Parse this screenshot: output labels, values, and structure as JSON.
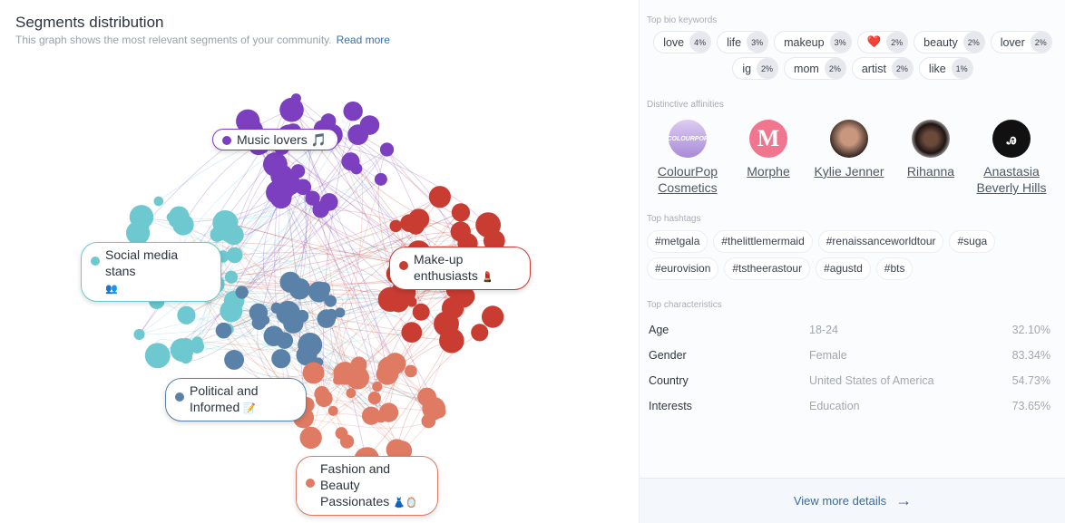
{
  "header": {
    "title": "Segments distribution",
    "subtitle": "This graph shows the most relevant segments of your community.",
    "read_more": "Read more"
  },
  "segments": [
    {
      "name": "Music lovers",
      "emoji": "🎵",
      "color": "#7b3fbf"
    },
    {
      "name": "Social media stans",
      "emoji": "👥",
      "color": "#6ec8d0"
    },
    {
      "name": "Make-up enthusiasts",
      "emoji": "💄",
      "color": "#c93c32"
    },
    {
      "name": "Political and Informed",
      "emoji": "📝",
      "color": "#5a82a8"
    },
    {
      "name": "Fashion and Beauty Passionates",
      "emoji": "👗🪞",
      "color": "#df7a63"
    }
  ],
  "keywords": {
    "title": "Top bio keywords",
    "items": [
      {
        "word": "love",
        "pct": "4%"
      },
      {
        "word": "life",
        "pct": "3%"
      },
      {
        "word": "makeup",
        "pct": "3%"
      },
      {
        "word": "❤️",
        "pct": "2%"
      },
      {
        "word": "beauty",
        "pct": "2%"
      },
      {
        "word": "lover",
        "pct": "2%"
      },
      {
        "word": "ig",
        "pct": "2%"
      },
      {
        "word": "mom",
        "pct": "2%"
      },
      {
        "word": "artist",
        "pct": "2%"
      },
      {
        "word": "like",
        "pct": "1%"
      }
    ]
  },
  "affinities": {
    "title": "Distinctive affinities",
    "items": [
      {
        "name": "ColourPop Cosmetics",
        "logo": "colourpop"
      },
      {
        "name": "Morphe",
        "logo": "M"
      },
      {
        "name": "Kylie Jenner"
      },
      {
        "name": "Rihanna"
      },
      {
        "name": "Anastasia Beverly Hills"
      }
    ]
  },
  "hashtags": {
    "title": "Top hashtags",
    "items": [
      "#metgala",
      "#thelittlemermaid",
      "#renaissanceworldtour",
      "#suga",
      "#eurovision",
      "#tstheerastour",
      "#agustd",
      "#bts"
    ]
  },
  "characteristics": {
    "title": "Top characteristics",
    "rows": [
      {
        "key": "Age",
        "value": "18-24",
        "pct": "32.10%"
      },
      {
        "key": "Gender",
        "value": "Female",
        "pct": "83.34%"
      },
      {
        "key": "Country",
        "value": "United States of America",
        "pct": "54.73%"
      },
      {
        "key": "Interests",
        "value": "Education",
        "pct": "73.65%"
      }
    ]
  },
  "footer": {
    "label": "View more details"
  }
}
